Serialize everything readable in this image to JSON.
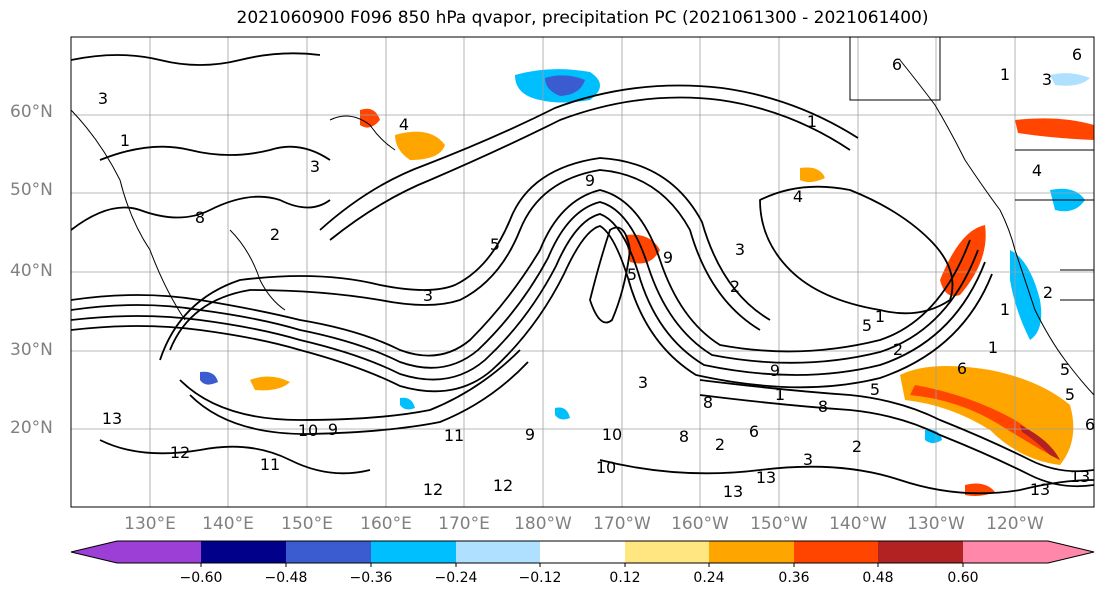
{
  "title": "2021060900 F096 850 hPa qvapor, precipitation PC (2021061300 - 2021061400)",
  "lat_labels": [
    "60°N",
    "50°N",
    "40°N",
    "30°N",
    "20°N"
  ],
  "lon_labels": [
    "130°E",
    "140°E",
    "150°E",
    "160°E",
    "170°E",
    "180°W",
    "170°W",
    "160°W",
    "150°W",
    "140°W",
    "130°W",
    "120°W"
  ],
  "colorbar": {
    "ticks": [
      "−0.60",
      "−0.48",
      "−0.36",
      "−0.24",
      "−0.12",
      "0.12",
      "0.24",
      "0.36",
      "0.48",
      "0.60"
    ],
    "colors": [
      "#9b3fd6",
      "#00008b",
      "#3b5bd0",
      "#00bfff",
      "#b0e0ff",
      "#ffffff",
      "#ffe680",
      "#ffa500",
      "#ff4500",
      "#b22222",
      "#ff88aa"
    ]
  },
  "contour_labels": [
    "3",
    "1",
    "3",
    "9",
    "6",
    "8",
    "2",
    "5",
    "5",
    "3",
    "4",
    "9",
    "3",
    "2",
    "5",
    "1",
    "1",
    "4",
    "4",
    "1",
    "3",
    "9",
    "8",
    "8",
    "6",
    "3",
    "2",
    "2",
    "1",
    "12",
    "13",
    "10",
    "11",
    "12",
    "9",
    "10",
    "12",
    "11",
    "8",
    "10",
    "13",
    "13",
    "5",
    "6",
    "2",
    "1",
    "13",
    "6",
    "13",
    "2",
    "3",
    "9",
    "6",
    "5",
    "5",
    "1"
  ]
}
